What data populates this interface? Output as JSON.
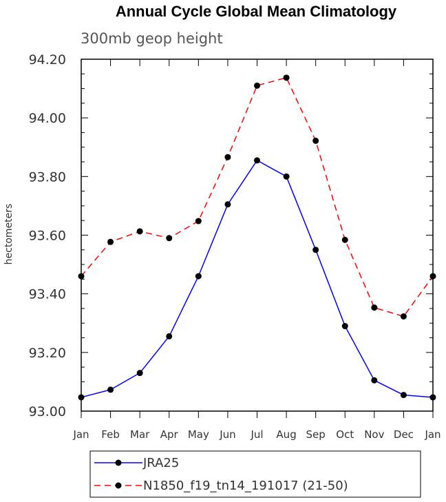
{
  "chart_data": {
    "type": "line",
    "title": "Annual Cycle Global Mean Climatology",
    "subtitle": "300mb geop height",
    "ylabel": "hectometers",
    "xlabel": "",
    "categories": [
      "Jan",
      "Feb",
      "Mar",
      "Apr",
      "May",
      "Jun",
      "Jul",
      "Aug",
      "Sep",
      "Oct",
      "Nov",
      "Dec",
      "Jan"
    ],
    "ylim": [
      93.0,
      94.2
    ],
    "yticks": [
      "93.00",
      "93.20",
      "93.40",
      "93.60",
      "93.80",
      "94.00",
      "94.20"
    ],
    "grid": false,
    "legend_position": "bottom",
    "series": [
      {
        "name": "JRA25",
        "color": "#0000ff",
        "dash": "solid",
        "values": [
          93.047,
          93.073,
          93.13,
          93.255,
          93.46,
          93.705,
          93.855,
          93.8,
          93.55,
          93.29,
          93.105,
          93.055,
          93.047
        ]
      },
      {
        "name": "N1850_f19_tn14_191017 (21-50)",
        "color": "#ff0000",
        "dash": "dashed",
        "values": [
          93.46,
          93.577,
          93.613,
          93.59,
          93.648,
          93.866,
          94.11,
          94.137,
          93.922,
          93.584,
          93.353,
          93.323,
          93.46
        ]
      }
    ]
  }
}
